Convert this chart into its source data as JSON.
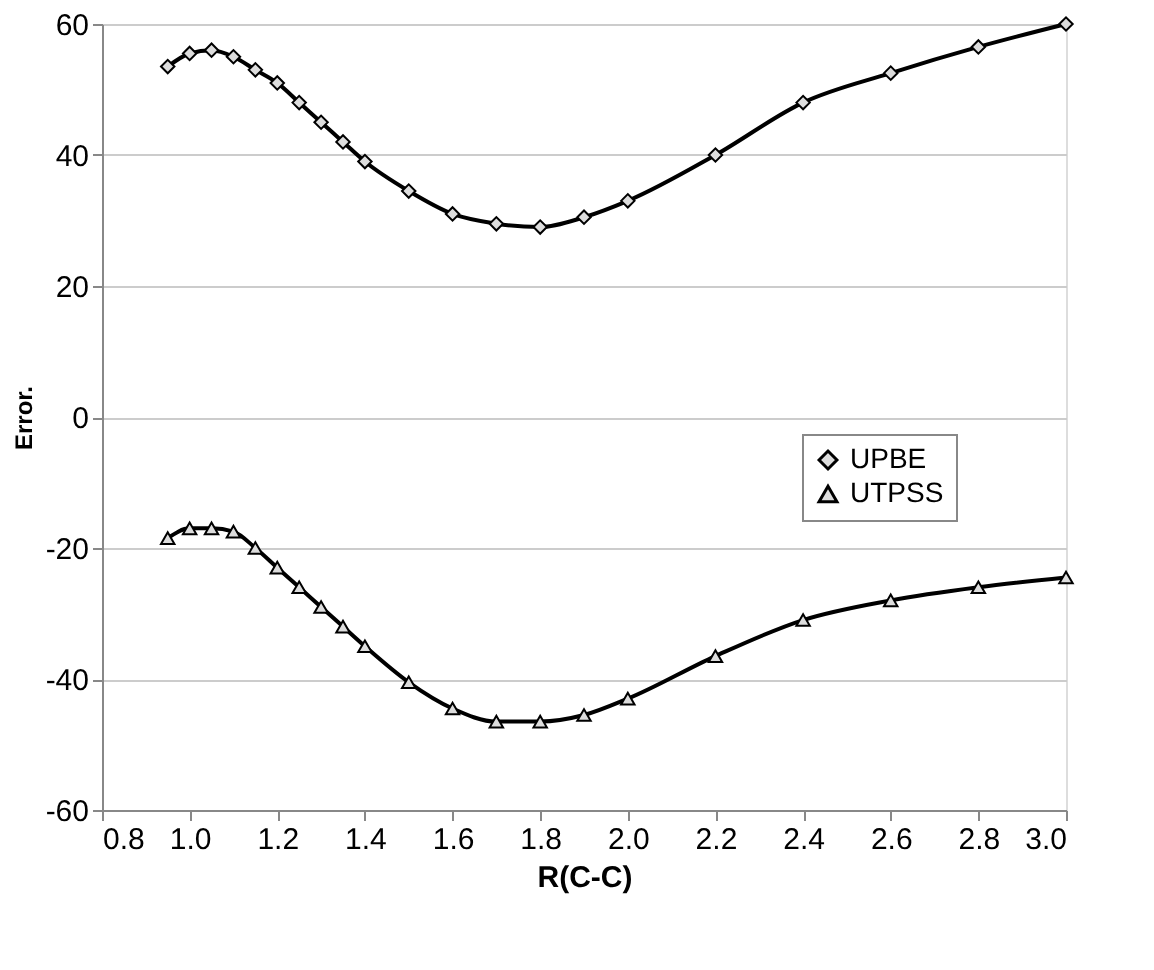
{
  "chart_data": {
    "type": "line",
    "xlabel": "R(C-C)",
    "ylabel": "Error.",
    "x": [
      0.95,
      1.0,
      1.05,
      1.1,
      1.15,
      1.2,
      1.25,
      1.3,
      1.35,
      1.4,
      1.5,
      1.6,
      1.7,
      1.8,
      1.9,
      2.0,
      2.2,
      2.4,
      2.6,
      2.8,
      3.0
    ],
    "series": [
      {
        "name": "UPBE",
        "color": "#000000",
        "marker": "diamond",
        "values": [
          53.5,
          55.5,
          56,
          55,
          53,
          51,
          48,
          45,
          42,
          39,
          34.5,
          31,
          29.5,
          29,
          30.5,
          33,
          40,
          48,
          52.5,
          56.5,
          60
        ]
      },
      {
        "name": "UTPSS",
        "color": "#000000",
        "marker": "triangle",
        "values": [
          -18.5,
          -17,
          -17,
          -17.5,
          -20,
          -23,
          -26,
          -29,
          -32,
          -35,
          -40.5,
          -44.5,
          -46.5,
          -46.5,
          -45.5,
          -43,
          -36.5,
          -31,
          -28,
          -26,
          -24.5
        ]
      }
    ],
    "xlim": [
      0.8,
      3.0
    ],
    "xticks": [
      0.8,
      {
        "value": 1,
        "label": "1.0"
      },
      1.2,
      1.4,
      1.6,
      1.8,
      {
        "value": 2,
        "label": "2.0"
      },
      2.2,
      2.4,
      2.6,
      2.8,
      {
        "value": 3,
        "label": "3.0"
      }
    ],
    "ylim": [
      -60,
      60
    ],
    "yticks": [
      -60,
      -40,
      -20,
      0,
      20,
      40,
      60
    ],
    "grid": "y",
    "legend": "right",
    "line_style": "solid"
  }
}
